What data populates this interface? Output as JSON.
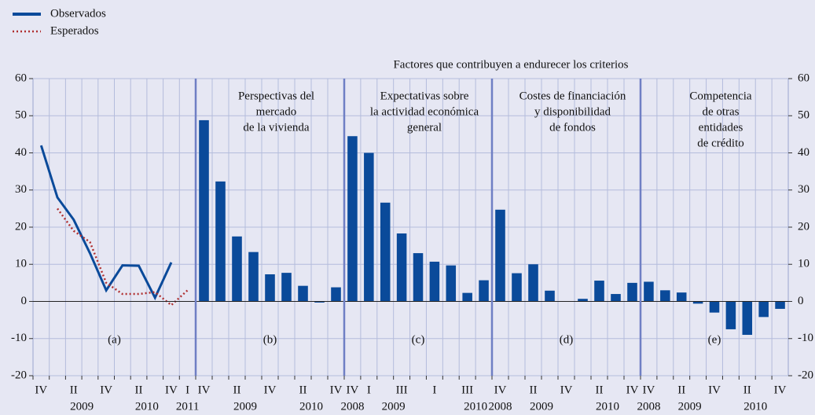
{
  "header": {
    "title": "Factores que contribuyen a endurecer los criterios"
  },
  "chart_data": [
    {
      "type": "line",
      "panel_label": "(a)",
      "categories": [
        "IV",
        null,
        "II",
        null,
        "IV",
        null,
        "II",
        null,
        "IV",
        "I"
      ],
      "years": [
        null,
        null,
        "2009",
        null,
        null,
        null,
        "2010",
        null,
        null,
        "2011"
      ],
      "series": [
        {
          "name": "Observados",
          "color": "#0a4a9a",
          "values": [
            42,
            28,
            22,
            13,
            3,
            9.7,
            9.6,
            1,
            10.5,
            null
          ]
        },
        {
          "name": "Esperados",
          "color": "#b03030",
          "values": [
            null,
            25,
            19,
            16,
            5,
            2,
            2,
            2.5,
            -1,
            3
          ]
        }
      ],
      "ylim": [
        -20,
        60
      ],
      "yticks": [
        -20,
        -10,
        0,
        10,
        20,
        30,
        40,
        50,
        60
      ]
    },
    {
      "type": "bar",
      "panel_label": "(b)",
      "panel_title": [
        "Perspectivas del",
        "mercado",
        "de la vivienda"
      ],
      "categories": [
        "IV",
        null,
        "II",
        null,
        "IV",
        null,
        "II",
        null,
        "IV"
      ],
      "years": [
        null,
        null,
        "2009",
        null,
        null,
        null,
        "2010",
        null,
        null
      ],
      "values": [
        48.8,
        32.3,
        17.5,
        13.3,
        7.3,
        7.7,
        4.2,
        -0.3,
        3.8
      ],
      "color": "#0a4a9a",
      "ylim": [
        -20,
        60
      ]
    },
    {
      "type": "bar",
      "panel_label": "(c)",
      "panel_title": [
        "Expectativas sobre",
        "la actividad económica",
        "general"
      ],
      "categories": [
        "IV",
        "I",
        null,
        "III",
        null,
        "I",
        null,
        "III",
        null
      ],
      "years": [
        "2008",
        null,
        "2009",
        null,
        null,
        null,
        null,
        "2010",
        null
      ],
      "values": [
        44.5,
        40,
        26.6,
        18.3,
        13,
        10.7,
        9.7,
        2.3,
        5.7
      ],
      "color": "#0a4a9a",
      "ylim": [
        -20,
        60
      ]
    },
    {
      "type": "bar",
      "panel_label": "(d)",
      "panel_title": [
        "Costes de financiación",
        "y disponibilidad",
        "de fondos"
      ],
      "categories": [
        "IV",
        null,
        "II",
        null,
        "IV",
        null,
        "II",
        null,
        "IV"
      ],
      "years": [
        "2008",
        null,
        "2009",
        null,
        null,
        null,
        "2010",
        null,
        null
      ],
      "values": [
        24.7,
        7.6,
        10,
        2.9,
        0,
        0.7,
        5.6,
        2,
        5
      ],
      "color": "#0a4a9a",
      "ylim": [
        -20,
        60
      ]
    },
    {
      "type": "bar",
      "panel_label": "(e)",
      "panel_title": [
        "Competencia",
        "de otras",
        "entidades",
        "de crédito"
      ],
      "categories": [
        "IV",
        null,
        "II",
        null,
        "IV",
        null,
        "II",
        null,
        "IV"
      ],
      "years": [
        "2008",
        null,
        "2009",
        null,
        null,
        null,
        "2010",
        null,
        null
      ],
      "values": [
        5.3,
        3,
        2.4,
        -0.6,
        -3,
        -7.5,
        -9,
        -4.2,
        -2
      ],
      "color": "#0a4a9a",
      "ylim": [
        -20,
        60
      ],
      "y2lim": [
        -20,
        60
      ],
      "y2ticks": [
        -20,
        -10,
        0,
        10,
        20,
        30,
        40,
        50,
        60
      ]
    }
  ]
}
